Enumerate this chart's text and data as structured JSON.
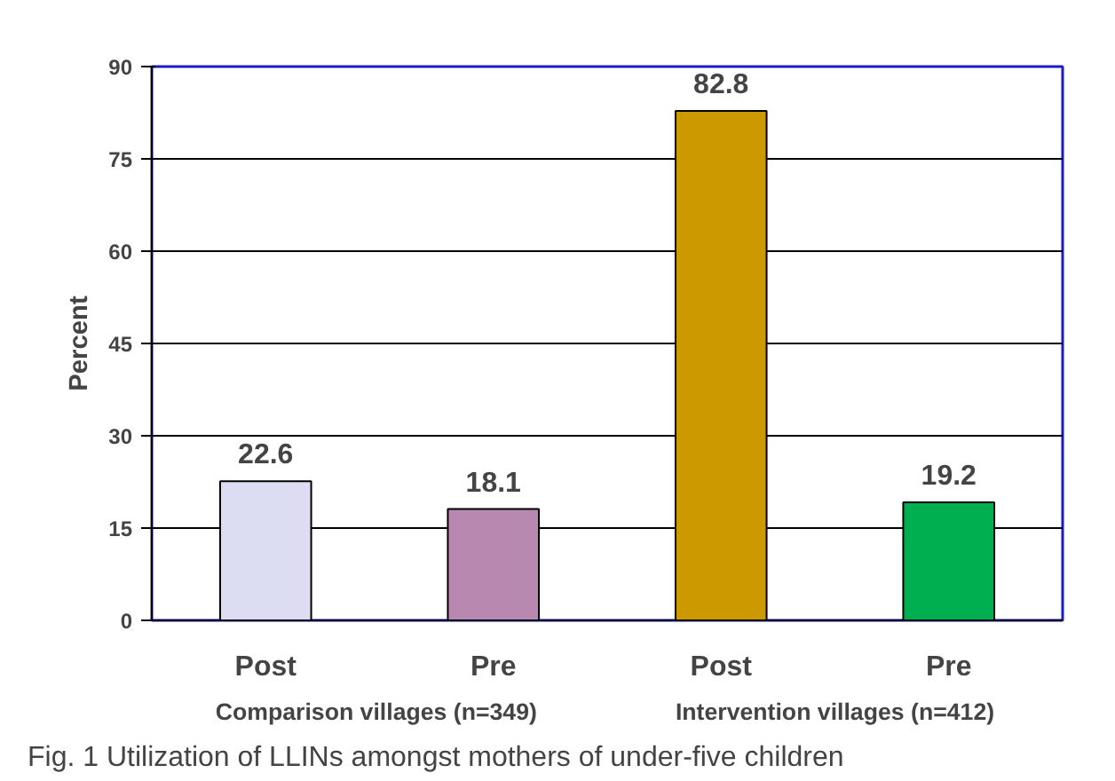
{
  "chart_data": {
    "type": "bar",
    "title": "Fig. 1  Utilization of LLINs amongst mothers of under-five children",
    "ylabel": "Percent",
    "categories": [
      "Post",
      "Pre",
      "Post",
      "Pre"
    ],
    "values": [
      22.6,
      18.1,
      82.8,
      19.2
    ],
    "colors": [
      "#dcdcf2",
      "#b888b0",
      "#cc9900",
      "#00b050"
    ],
    "data_labels": true,
    "annotations": [
      "Comparison villages  (n=349)",
      "Intervention villages (n=412)"
    ],
    "ylim": [
      0,
      90
    ],
    "yticks": [
      0,
      15,
      30,
      45,
      60,
      75,
      90
    ],
    "grid": "y"
  }
}
